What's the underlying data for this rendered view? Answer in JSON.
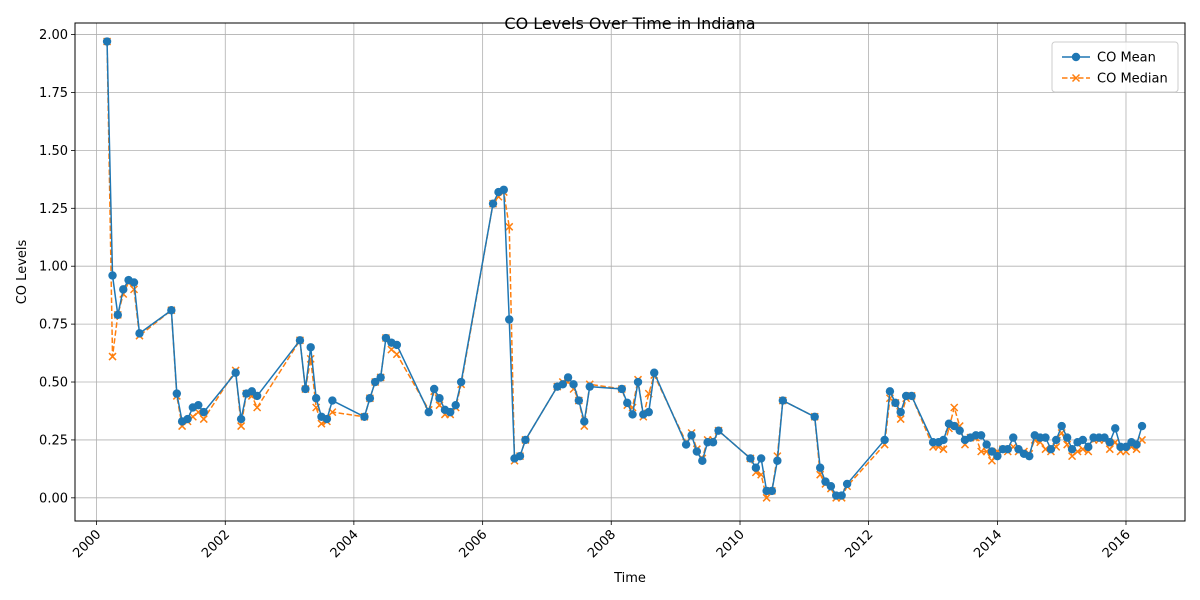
{
  "chart_data": {
    "type": "line",
    "title": "CO Levels Over Time in Indiana",
    "xlabel": "Time",
    "ylabel": "CO Levels",
    "xlim": [
      "1999-09-01",
      "2016-12-01"
    ],
    "ylim": [
      -0.1,
      2.05
    ],
    "x_ticks": [
      "2000",
      "2002",
      "2004",
      "2006",
      "2008",
      "2010",
      "2012",
      "2014",
      "2016"
    ],
    "y_ticks": [
      "0.00",
      "0.25",
      "0.50",
      "0.75",
      "1.00",
      "1.25",
      "1.50",
      "1.75",
      "2.00"
    ],
    "grid": true,
    "legend_position": "top-right",
    "series": [
      {
        "name": "CO Mean",
        "color": "#1f77b4",
        "line_style": "solid",
        "marker": "circle",
        "points": [
          [
            "2000-03-01",
            1.97
          ],
          [
            "2000-04-01",
            0.96
          ],
          [
            "2000-05-01",
            0.79
          ],
          [
            "2000-06-01",
            0.9
          ],
          [
            "2000-07-01",
            0.94
          ],
          [
            "2000-08-01",
            0.93
          ],
          [
            "2000-09-01",
            0.71
          ],
          [
            "2001-03-01",
            0.81
          ],
          [
            "2001-04-01",
            0.45
          ],
          [
            "2001-05-01",
            0.33
          ],
          [
            "2001-06-01",
            0.34
          ],
          [
            "2001-07-01",
            0.39
          ],
          [
            "2001-08-01",
            0.4
          ],
          [
            "2001-09-01",
            0.37
          ],
          [
            "2002-03-01",
            0.54
          ],
          [
            "2002-04-01",
            0.34
          ],
          [
            "2002-05-01",
            0.45
          ],
          [
            "2002-06-01",
            0.46
          ],
          [
            "2002-07-01",
            0.44
          ],
          [
            "2003-03-01",
            0.68
          ],
          [
            "2003-04-01",
            0.47
          ],
          [
            "2003-05-01",
            0.65
          ],
          [
            "2003-06-01",
            0.43
          ],
          [
            "2003-07-01",
            0.35
          ],
          [
            "2003-08-01",
            0.34
          ],
          [
            "2003-09-01",
            0.42
          ],
          [
            "2004-03-01",
            0.35
          ],
          [
            "2004-04-01",
            0.43
          ],
          [
            "2004-05-01",
            0.5
          ],
          [
            "2004-06-01",
            0.52
          ],
          [
            "2004-07-01",
            0.69
          ],
          [
            "2004-08-01",
            0.67
          ],
          [
            "2004-09-01",
            0.66
          ],
          [
            "2005-03-01",
            0.37
          ],
          [
            "2005-04-01",
            0.47
          ],
          [
            "2005-05-01",
            0.43
          ],
          [
            "2005-06-01",
            0.38
          ],
          [
            "2005-07-01",
            0.37
          ],
          [
            "2005-08-01",
            0.4
          ],
          [
            "2005-09-01",
            0.5
          ],
          [
            "2006-03-01",
            1.27
          ],
          [
            "2006-04-01",
            1.32
          ],
          [
            "2006-05-01",
            1.33
          ],
          [
            "2006-06-01",
            0.77
          ],
          [
            "2006-07-01",
            0.17
          ],
          [
            "2006-08-01",
            0.18
          ],
          [
            "2006-09-01",
            0.25
          ],
          [
            "2007-03-01",
            0.48
          ],
          [
            "2007-04-01",
            0.49
          ],
          [
            "2007-05-01",
            0.52
          ],
          [
            "2007-06-01",
            0.49
          ],
          [
            "2007-07-01",
            0.42
          ],
          [
            "2007-08-01",
            0.33
          ],
          [
            "2007-09-01",
            0.48
          ],
          [
            "2008-03-01",
            0.47
          ],
          [
            "2008-04-01",
            0.41
          ],
          [
            "2008-05-01",
            0.36
          ],
          [
            "2008-06-01",
            0.5
          ],
          [
            "2008-07-01",
            0.36
          ],
          [
            "2008-08-01",
            0.37
          ],
          [
            "2008-09-01",
            0.54
          ],
          [
            "2009-03-01",
            0.23
          ],
          [
            "2009-04-01",
            0.27
          ],
          [
            "2009-05-01",
            0.2
          ],
          [
            "2009-06-01",
            0.16
          ],
          [
            "2009-07-01",
            0.24
          ],
          [
            "2009-08-01",
            0.24
          ],
          [
            "2009-09-01",
            0.29
          ],
          [
            "2010-03-01",
            0.17
          ],
          [
            "2010-04-01",
            0.13
          ],
          [
            "2010-05-01",
            0.17
          ],
          [
            "2010-06-01",
            0.03
          ],
          [
            "2010-07-01",
            0.03
          ],
          [
            "2010-08-01",
            0.16
          ],
          [
            "2010-09-01",
            0.42
          ],
          [
            "2011-03-01",
            0.35
          ],
          [
            "2011-04-01",
            0.13
          ],
          [
            "2011-05-01",
            0.07
          ],
          [
            "2011-06-01",
            0.05
          ],
          [
            "2011-07-01",
            0.01
          ],
          [
            "2011-08-01",
            0.01
          ],
          [
            "2011-09-01",
            0.06
          ],
          [
            "2012-04-01",
            0.25
          ],
          [
            "2012-05-01",
            0.46
          ],
          [
            "2012-06-01",
            0.41
          ],
          [
            "2012-07-01",
            0.37
          ],
          [
            "2012-08-01",
            0.44
          ],
          [
            "2012-09-01",
            0.44
          ],
          [
            "2013-01-01",
            0.24
          ],
          [
            "2013-02-01",
            0.24
          ],
          [
            "2013-03-01",
            0.25
          ],
          [
            "2013-04-01",
            0.32
          ],
          [
            "2013-05-01",
            0.31
          ],
          [
            "2013-06-01",
            0.29
          ],
          [
            "2013-07-01",
            0.25
          ],
          [
            "2013-08-01",
            0.26
          ],
          [
            "2013-09-01",
            0.27
          ],
          [
            "2013-10-01",
            0.27
          ],
          [
            "2013-11-01",
            0.23
          ],
          [
            "2013-12-01",
            0.2
          ],
          [
            "2014-01-01",
            0.18
          ],
          [
            "2014-02-01",
            0.21
          ],
          [
            "2014-03-01",
            0.21
          ],
          [
            "2014-04-01",
            0.26
          ],
          [
            "2014-05-01",
            0.21
          ],
          [
            "2014-06-01",
            0.19
          ],
          [
            "2014-07-01",
            0.18
          ],
          [
            "2014-08-01",
            0.27
          ],
          [
            "2014-09-01",
            0.26
          ],
          [
            "2014-10-01",
            0.26
          ],
          [
            "2014-11-01",
            0.21
          ],
          [
            "2014-12-01",
            0.25
          ],
          [
            "2015-01-01",
            0.31
          ],
          [
            "2015-02-01",
            0.26
          ],
          [
            "2015-03-01",
            0.21
          ],
          [
            "2015-04-01",
            0.24
          ],
          [
            "2015-05-01",
            0.25
          ],
          [
            "2015-06-01",
            0.22
          ],
          [
            "2015-07-01",
            0.26
          ],
          [
            "2015-08-01",
            0.26
          ],
          [
            "2015-09-01",
            0.26
          ],
          [
            "2015-10-01",
            0.24
          ],
          [
            "2015-11-01",
            0.3
          ],
          [
            "2015-12-01",
            0.22
          ],
          [
            "2016-01-01",
            0.22
          ],
          [
            "2016-02-01",
            0.24
          ],
          [
            "2016-03-01",
            0.23
          ],
          [
            "2016-04-01",
            0.31
          ]
        ]
      },
      {
        "name": "CO Median",
        "color": "#ff7f0e",
        "line_style": "dashed",
        "marker": "x",
        "points": [
          [
            "2000-03-01",
            1.97
          ],
          [
            "2000-04-01",
            0.61
          ],
          [
            "2000-05-01",
            0.79
          ],
          [
            "2000-06-01",
            0.88
          ],
          [
            "2000-07-01",
            0.93
          ],
          [
            "2000-08-01",
            0.9
          ],
          [
            "2000-09-01",
            0.7
          ],
          [
            "2001-03-01",
            0.81
          ],
          [
            "2001-04-01",
            0.44
          ],
          [
            "2001-05-01",
            0.31
          ],
          [
            "2001-06-01",
            0.33
          ],
          [
            "2001-07-01",
            0.35
          ],
          [
            "2001-08-01",
            0.37
          ],
          [
            "2001-09-01",
            0.34
          ],
          [
            "2002-03-01",
            0.55
          ],
          [
            "2002-04-01",
            0.31
          ],
          [
            "2002-05-01",
            0.45
          ],
          [
            "2002-06-01",
            0.44
          ],
          [
            "2002-07-01",
            0.39
          ],
          [
            "2003-03-01",
            0.68
          ],
          [
            "2003-04-01",
            0.47
          ],
          [
            "2003-05-01",
            0.6
          ],
          [
            "2003-06-01",
            0.39
          ],
          [
            "2003-07-01",
            0.32
          ],
          [
            "2003-08-01",
            0.33
          ],
          [
            "2003-09-01",
            0.37
          ],
          [
            "2004-03-01",
            0.35
          ],
          [
            "2004-04-01",
            0.43
          ],
          [
            "2004-05-01",
            0.5
          ],
          [
            "2004-06-01",
            0.52
          ],
          [
            "2004-07-01",
            0.69
          ],
          [
            "2004-08-01",
            0.64
          ],
          [
            "2004-09-01",
            0.62
          ],
          [
            "2005-03-01",
            0.38
          ],
          [
            "2005-04-01",
            0.46
          ],
          [
            "2005-05-01",
            0.4
          ],
          [
            "2005-06-01",
            0.36
          ],
          [
            "2005-07-01",
            0.36
          ],
          [
            "2005-08-01",
            0.39
          ],
          [
            "2005-09-01",
            0.49
          ],
          [
            "2006-03-01",
            1.27
          ],
          [
            "2006-04-01",
            1.3
          ],
          [
            "2006-05-01",
            1.32
          ],
          [
            "2006-06-01",
            1.17
          ],
          [
            "2006-07-01",
            0.16
          ],
          [
            "2006-08-01",
            0.18
          ],
          [
            "2006-09-01",
            0.25
          ],
          [
            "2007-03-01",
            0.48
          ],
          [
            "2007-04-01",
            0.5
          ],
          [
            "2007-05-01",
            0.5
          ],
          [
            "2007-06-01",
            0.47
          ],
          [
            "2007-07-01",
            0.42
          ],
          [
            "2007-08-01",
            0.31
          ],
          [
            "2007-09-01",
            0.49
          ],
          [
            "2008-03-01",
            0.47
          ],
          [
            "2008-04-01",
            0.4
          ],
          [
            "2008-05-01",
            0.39
          ],
          [
            "2008-06-01",
            0.51
          ],
          [
            "2008-07-01",
            0.35
          ],
          [
            "2008-08-01",
            0.45
          ],
          [
            "2008-09-01",
            0.53
          ],
          [
            "2009-03-01",
            0.24
          ],
          [
            "2009-04-01",
            0.28
          ],
          [
            "2009-05-01",
            0.21
          ],
          [
            "2009-06-01",
            0.17
          ],
          [
            "2009-07-01",
            0.25
          ],
          [
            "2009-08-01",
            0.25
          ],
          [
            "2009-09-01",
            0.29
          ],
          [
            "2010-03-01",
            0.17
          ],
          [
            "2010-04-01",
            0.11
          ],
          [
            "2010-05-01",
            0.1
          ],
          [
            "2010-06-01",
            0.0
          ],
          [
            "2010-07-01",
            0.03
          ],
          [
            "2010-08-01",
            0.18
          ],
          [
            "2010-09-01",
            0.42
          ],
          [
            "2011-03-01",
            0.35
          ],
          [
            "2011-04-01",
            0.1
          ],
          [
            "2011-05-01",
            0.06
          ],
          [
            "2011-06-01",
            0.04
          ],
          [
            "2011-07-01",
            0.0
          ],
          [
            "2011-08-01",
            0.0
          ],
          [
            "2011-09-01",
            0.05
          ],
          [
            "2012-04-01",
            0.23
          ],
          [
            "2012-05-01",
            0.43
          ],
          [
            "2012-06-01",
            0.41
          ],
          [
            "2012-07-01",
            0.34
          ],
          [
            "2012-08-01",
            0.43
          ],
          [
            "2012-09-01",
            0.44
          ],
          [
            "2013-01-01",
            0.22
          ],
          [
            "2013-02-01",
            0.22
          ],
          [
            "2013-03-01",
            0.21
          ],
          [
            "2013-04-01",
            0.3
          ],
          [
            "2013-05-01",
            0.39
          ],
          [
            "2013-06-01",
            0.31
          ],
          [
            "2013-07-01",
            0.23
          ],
          [
            "2013-08-01",
            0.26
          ],
          [
            "2013-09-01",
            0.26
          ],
          [
            "2013-10-01",
            0.2
          ],
          [
            "2013-11-01",
            0.2
          ],
          [
            "2013-12-01",
            0.16
          ],
          [
            "2014-01-01",
            0.2
          ],
          [
            "2014-02-01",
            0.21
          ],
          [
            "2014-03-01",
            0.2
          ],
          [
            "2014-04-01",
            0.22
          ],
          [
            "2014-05-01",
            0.2
          ],
          [
            "2014-06-01",
            0.2
          ],
          [
            "2014-07-01",
            0.19
          ],
          [
            "2014-08-01",
            0.25
          ],
          [
            "2014-09-01",
            0.24
          ],
          [
            "2014-10-01",
            0.21
          ],
          [
            "2014-11-01",
            0.2
          ],
          [
            "2014-12-01",
            0.22
          ],
          [
            "2015-01-01",
            0.28
          ],
          [
            "2015-02-01",
            0.23
          ],
          [
            "2015-03-01",
            0.18
          ],
          [
            "2015-04-01",
            0.2
          ],
          [
            "2015-05-01",
            0.21
          ],
          [
            "2015-06-01",
            0.2
          ],
          [
            "2015-07-01",
            0.25
          ],
          [
            "2015-08-01",
            0.25
          ],
          [
            "2015-09-01",
            0.25
          ],
          [
            "2015-10-01",
            0.21
          ],
          [
            "2015-11-01",
            0.24
          ],
          [
            "2015-12-01",
            0.2
          ],
          [
            "2016-01-01",
            0.2
          ],
          [
            "2016-02-01",
            0.22
          ],
          [
            "2016-03-01",
            0.21
          ],
          [
            "2016-04-01",
            0.25
          ]
        ]
      }
    ]
  }
}
